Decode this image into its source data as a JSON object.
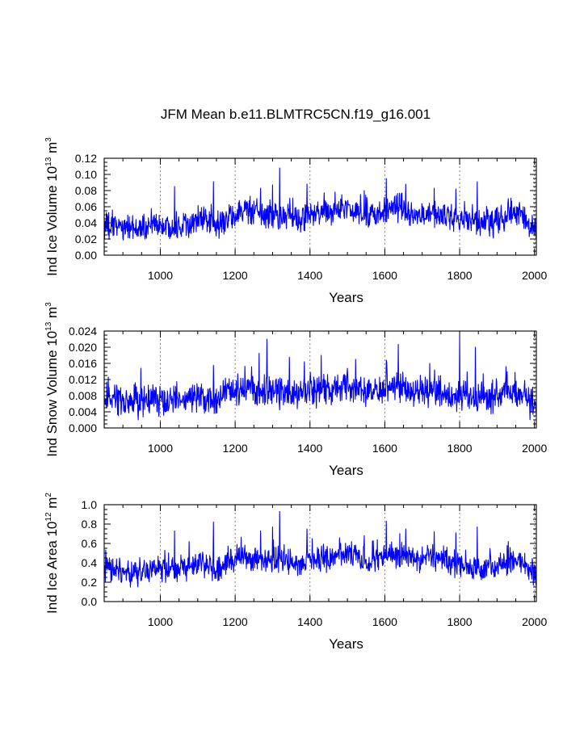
{
  "title": "JFM Mean b.e11.BLMTRC5CN.f19_g16.001",
  "colors": {
    "series": "#0000ff",
    "axis": "#000000",
    "grid": "#808080"
  },
  "chart_data": [
    {
      "type": "line",
      "name": "ice-volume",
      "ylabel": {
        "text": "Ind Ice Volume 10",
        "exp": "13",
        "unit": " m",
        "unit_exp": "3"
      },
      "xlabel": "Years",
      "xlim": [
        850,
        2005
      ],
      "ylim": [
        0.0,
        0.12
      ],
      "x_ticks": [
        1000,
        1200,
        1400,
        1600,
        1800,
        2000
      ],
      "x_tick_labels": [
        "1000",
        "1200",
        "1400",
        "1600",
        "1800",
        "2000"
      ],
      "y_ticks": [
        0.0,
        0.02,
        0.04,
        0.06,
        0.08,
        0.1,
        0.12
      ],
      "y_tick_labels": [
        "0.00",
        "0.02",
        "0.04",
        "0.06",
        "0.08",
        "0.10",
        "0.12"
      ],
      "grid_x": true,
      "series": [
        {
          "name": "Ind Ice Volume",
          "note": "annual JFM values 850-2005; series shown as 20-year segments of approximate mean/variability",
          "x_start": 850,
          "segment_years": 20,
          "segment_means": [
            0.036,
            0.035,
            0.036,
            0.034,
            0.03,
            0.033,
            0.036,
            0.038,
            0.034,
            0.035,
            0.038,
            0.037,
            0.042,
            0.045,
            0.04,
            0.034,
            0.04,
            0.05,
            0.052,
            0.055,
            0.05,
            0.047,
            0.05,
            0.048,
            0.046,
            0.045,
            0.044,
            0.048,
            0.05,
            0.05,
            0.052,
            0.055,
            0.056,
            0.055,
            0.05,
            0.048,
            0.05,
            0.052,
            0.055,
            0.057,
            0.055,
            0.05,
            0.048,
            0.052,
            0.05,
            0.048,
            0.046,
            0.045,
            0.042,
            0.04,
            0.04,
            0.04,
            0.04,
            0.045,
            0.048,
            0.052,
            0.05,
            0.034
          ],
          "segment_spread": 0.012,
          "peaks": [
            [
              1038,
              0.085
            ],
            [
              1142,
              0.091
            ],
            [
              1268,
              0.083
            ],
            [
              1300,
              0.087
            ],
            [
              1319,
              0.108
            ],
            [
              1392,
              0.088
            ],
            [
              1545,
              0.08
            ],
            [
              1604,
              0.095
            ],
            [
              1656,
              0.088
            ],
            [
              1732,
              0.083
            ],
            [
              1790,
              0.082
            ],
            [
              1847,
              0.091
            ],
            [
              1930,
              0.07
            ],
            [
              1970,
              0.06
            ]
          ],
          "end_value": 0.018
        }
      ]
    },
    {
      "type": "line",
      "name": "snow-volume",
      "ylabel": {
        "text": "Ind Snow Volume 10",
        "exp": "13",
        "unit": " m",
        "unit_exp": "3"
      },
      "xlabel": "Years",
      "xlim": [
        850,
        2005
      ],
      "ylim": [
        0.0,
        0.024
      ],
      "x_ticks": [
        1000,
        1200,
        1400,
        1600,
        1800,
        2000
      ],
      "x_tick_labels": [
        "1000",
        "1200",
        "1400",
        "1600",
        "1800",
        "2000"
      ],
      "y_ticks": [
        0.0,
        0.004,
        0.008,
        0.012,
        0.016,
        0.02,
        0.024
      ],
      "y_tick_labels": [
        "0.000",
        "0.004",
        "0.008",
        "0.012",
        "0.016",
        "0.020",
        "0.024"
      ],
      "grid_x": true,
      "series": [
        {
          "name": "Ind Snow Volume",
          "note": "annual JFM values 850-2005; series shown as 20-year segments of approximate mean/variability",
          "x_start": 850,
          "segment_years": 20,
          "segment_means": [
            0.0065,
            0.0068,
            0.0065,
            0.0062,
            0.006,
            0.0062,
            0.0066,
            0.007,
            0.0064,
            0.0066,
            0.007,
            0.0068,
            0.0075,
            0.008,
            0.0074,
            0.0066,
            0.0078,
            0.0092,
            0.0095,
            0.0098,
            0.0092,
            0.0086,
            0.009,
            0.0088,
            0.0084,
            0.0082,
            0.008,
            0.0088,
            0.009,
            0.0092,
            0.0096,
            0.01,
            0.0102,
            0.01,
            0.0094,
            0.009,
            0.0094,
            0.0098,
            0.01,
            0.0102,
            0.0098,
            0.0092,
            0.0088,
            0.0094,
            0.009,
            0.0086,
            0.0084,
            0.0082,
            0.0078,
            0.0075,
            0.0076,
            0.0076,
            0.0076,
            0.0082,
            0.0088,
            0.0092,
            0.009,
            0.006
          ],
          "segment_spread": 0.0028,
          "peaks": [
            [
              948,
              0.0148
            ],
            [
              1142,
              0.0155
            ],
            [
              1264,
              0.0185
            ],
            [
              1285,
              0.022
            ],
            [
              1345,
              0.0175
            ],
            [
              1430,
              0.018
            ],
            [
              1522,
              0.017
            ],
            [
              1604,
              0.0168
            ],
            [
              1636,
              0.0207
            ],
            [
              1720,
              0.016
            ],
            [
              1800,
              0.0225
            ],
            [
              1842,
              0.02
            ],
            [
              1924,
              0.0152
            ]
          ],
          "end_value": 0.003
        }
      ]
    },
    {
      "type": "line",
      "name": "ice-area",
      "ylabel": {
        "text": "Ind Ice Area 10",
        "exp": "12",
        "unit": " m",
        "unit_exp": "2"
      },
      "xlabel": "Years",
      "xlim": [
        850,
        2005
      ],
      "ylim": [
        0.0,
        1.0
      ],
      "x_ticks": [
        1000,
        1200,
        1400,
        1600,
        1800,
        2000
      ],
      "x_tick_labels": [
        "1000",
        "1200",
        "1400",
        "1600",
        "1800",
        "2000"
      ],
      "y_ticks": [
        0.0,
        0.2,
        0.4,
        0.6,
        0.8,
        1.0
      ],
      "y_tick_labels": [
        "0.0",
        "0.2",
        "0.4",
        "0.6",
        "0.8",
        "1.0"
      ],
      "grid_x": true,
      "series": [
        {
          "name": "Ind Ice Area",
          "note": "annual JFM values 850-2005; series shown as 20-year segments of approximate mean/variability",
          "x_start": 850,
          "segment_years": 20,
          "segment_means": [
            0.33,
            0.32,
            0.33,
            0.31,
            0.28,
            0.3,
            0.32,
            0.34,
            0.31,
            0.32,
            0.34,
            0.33,
            0.37,
            0.39,
            0.35,
            0.31,
            0.36,
            0.43,
            0.45,
            0.46,
            0.43,
            0.4,
            0.42,
            0.41,
            0.4,
            0.39,
            0.38,
            0.41,
            0.43,
            0.43,
            0.45,
            0.47,
            0.48,
            0.47,
            0.43,
            0.41,
            0.43,
            0.45,
            0.47,
            0.49,
            0.47,
            0.43,
            0.41,
            0.45,
            0.43,
            0.41,
            0.4,
            0.39,
            0.37,
            0.35,
            0.35,
            0.35,
            0.35,
            0.38,
            0.41,
            0.44,
            0.43,
            0.3
          ],
          "segment_spread": 0.095,
          "peaks": [
            [
              1038,
              0.73
            ],
            [
              1142,
              0.82
            ],
            [
              1268,
              0.73
            ],
            [
              1300,
              0.77
            ],
            [
              1319,
              0.93
            ],
            [
              1392,
              0.75
            ],
            [
              1545,
              0.68
            ],
            [
              1604,
              0.83
            ],
            [
              1656,
              0.75
            ],
            [
              1732,
              0.72
            ],
            [
              1790,
              0.71
            ],
            [
              1847,
              0.77
            ],
            [
              1930,
              0.62
            ]
          ],
          "end_value": 0.15
        }
      ]
    }
  ]
}
